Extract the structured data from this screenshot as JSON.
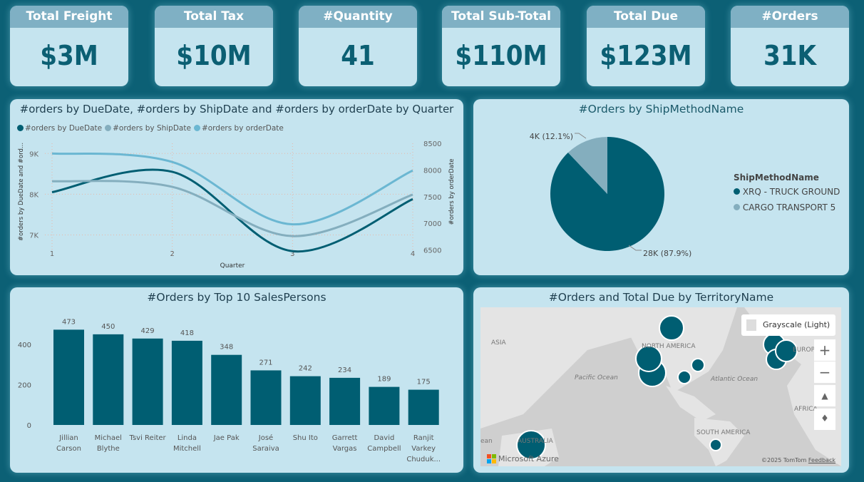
{
  "kpis": [
    {
      "label": "Total Freight",
      "value": "$3M"
    },
    {
      "label": "Total Tax",
      "value": "$10M"
    },
    {
      "label": "#Quantity",
      "value": "41"
    },
    {
      "label": "Total Sub-Total",
      "value": "$110M"
    },
    {
      "label": "Total Due",
      "value": "$123M"
    },
    {
      "label": "#Orders",
      "value": "31K"
    }
  ],
  "colors": {
    "background": "#0c6075",
    "card": "#c5e4ef",
    "kpi_header": "#7fb0c4",
    "dark": "#005e72",
    "mid": "#84aebe",
    "light": "#6bb7d2"
  },
  "chart_data": [
    {
      "type": "line",
      "title": "#orders by DueDate, #orders by ShipDate and #orders by orderDate by Quarter",
      "xlabel": "Quarter",
      "ylabel": "#orders by DueDate and #ord...",
      "y2label": "#orders by orderDate",
      "categories": [
        "1",
        "2",
        "3",
        "4"
      ],
      "yticks": [
        "9K",
        "8K",
        "7K"
      ],
      "ylim": [
        6500,
        9250
      ],
      "y2ticks": [
        "8500",
        "8000",
        "7500",
        "7000",
        "6500"
      ],
      "y2lim": [
        6400,
        8500
      ],
      "legend_position": "top-left",
      "grid": true,
      "series": [
        {
          "name": "#orders by DueDate",
          "axis": "left",
          "color": "#005e72",
          "values": [
            8050,
            8550,
            6600,
            7880
          ]
        },
        {
          "name": "#orders by ShipDate",
          "axis": "left",
          "color": "#84aebe",
          "values": [
            8320,
            8180,
            6970,
            7990
          ]
        },
        {
          "name": "#orders by orderDate",
          "axis": "right",
          "color": "#6bb7d2",
          "values": [
            8310,
            8150,
            6980,
            7990
          ]
        }
      ]
    },
    {
      "type": "pie",
      "title": "#Orders by ShipMethodName",
      "legend_title": "ShipMethodName",
      "legend_position": "right",
      "slices": [
        {
          "name": "XRQ - TRUCK GROUND",
          "value": 28000,
          "percent": 87.9,
          "label": "28K (87.9%)",
          "color": "#005e72"
        },
        {
          "name": "CARGO TRANSPORT 5",
          "value": 4000,
          "percent": 12.1,
          "label": "4K (12.1%)",
          "color": "#84aebe"
        }
      ]
    },
    {
      "type": "bar",
      "title": "#Orders by Top 10 SalesPersons",
      "categories": [
        [
          "Jillian",
          "Carson"
        ],
        [
          "Michael",
          "Blythe"
        ],
        [
          "Tsvi Reiter"
        ],
        [
          "Linda",
          "Mitchell"
        ],
        [
          "Jae Pak"
        ],
        [
          "José",
          "Saraiva"
        ],
        [
          "Shu Ito"
        ],
        [
          "Garrett",
          "Vargas"
        ],
        [
          "David",
          "Campbell"
        ],
        [
          "Ranjit",
          "Varkey",
          "Chuduk..."
        ]
      ],
      "values": [
        473,
        450,
        429,
        418,
        348,
        271,
        242,
        234,
        189,
        175
      ],
      "yticks": [
        "0",
        "200",
        "400"
      ],
      "ylim": [
        0,
        500
      ],
      "color": "#005e72"
    }
  ],
  "map": {
    "title": "#Orders and Total Due by TerritoryName",
    "style_button": "Grayscale (Light)",
    "labels": {
      "asia": "ASIA",
      "north_america": "NORTH AMERICA",
      "europe": "EUROPE",
      "africa": "AFRICA",
      "south_america": "SOUTH AMERICA",
      "australia": "AUSTRALIA",
      "pacific": "Pacific Ocean",
      "atlantic": "Atlantic Ocean",
      "ocean_edge": "ean"
    },
    "attribution": "©2025 TomTom",
    "feedback": "Feedback",
    "brand": "Microsoft Azure",
    "zoom_in": "+",
    "zoom_out": "−"
  }
}
